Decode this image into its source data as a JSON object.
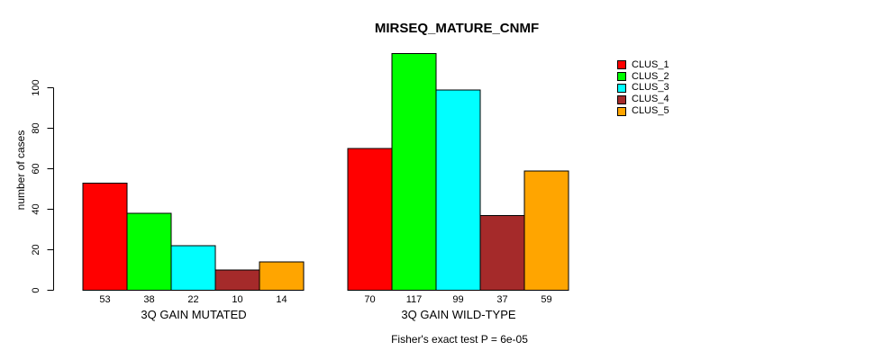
{
  "chart_data": {
    "type": "bar",
    "title": "MIRSEQ_MATURE_CNMF",
    "ylabel": "number of cases",
    "xlabel": "",
    "ylim": [
      0,
      100
    ],
    "yticks": [
      0,
      20,
      40,
      60,
      80,
      100
    ],
    "grid": false,
    "legend_position": "right",
    "bar_value_labels": true,
    "categories": [
      "3Q GAIN MUTATED",
      "3Q GAIN WILD-TYPE"
    ],
    "series": [
      {
        "name": "CLUS_1",
        "color": "#FF0000",
        "values": [
          53,
          70
        ]
      },
      {
        "name": "CLUS_2",
        "color": "#00FF00",
        "values": [
          38,
          117
        ]
      },
      {
        "name": "CLUS_3",
        "color": "#00FFFF",
        "values": [
          22,
          99
        ]
      },
      {
        "name": "CLUS_4",
        "color": "#A52A2A",
        "values": [
          10,
          37
        ]
      },
      {
        "name": "CLUS_5",
        "color": "#FFA500",
        "values": [
          14,
          59
        ]
      }
    ],
    "footnote": "Fisher's exact test P = 6e-05",
    "background": "#FFFFFF",
    "axis_color": "#000000"
  }
}
